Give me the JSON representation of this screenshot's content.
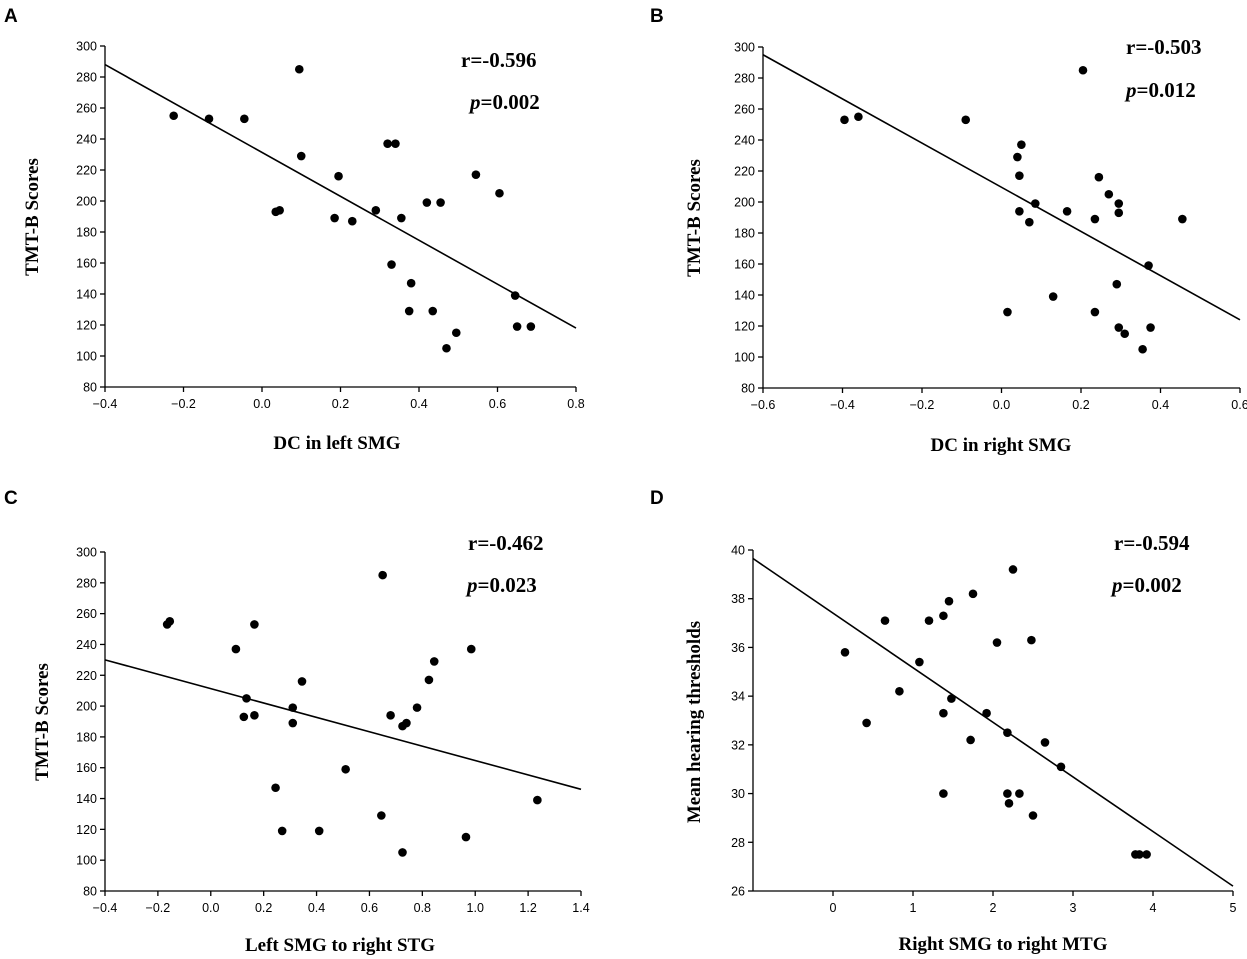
{
  "chart_data": [
    {
      "type": "scatter",
      "panel": "A",
      "xlabel": "DC in left SMG",
      "ylabel": "TMT-B Scores",
      "xlim": [
        -0.4,
        0.8
      ],
      "ylim": [
        80,
        300
      ],
      "xticks": [
        -0.4,
        -0.2,
        0.0,
        0.2,
        0.4,
        0.6,
        0.8
      ],
      "yticks": [
        80,
        100,
        120,
        140,
        160,
        180,
        200,
        220,
        240,
        260,
        280,
        300
      ],
      "xtick_labels": [
        "−0.4",
        "−0.2",
        "0.0",
        "0.2",
        "0.4",
        "0.6",
        "0.8"
      ],
      "ytick_labels": [
        "80",
        "100",
        "120",
        "140",
        "160",
        "180",
        "200",
        "220",
        "240",
        "260",
        "280",
        "300"
      ],
      "r_text": "r=-0.596",
      "p_label": "p",
      "p_value": "=0.002",
      "fit": {
        "x": [
          -0.4,
          0.8
        ],
        "y": [
          288,
          118
        ]
      },
      "points": [
        [
          -0.225,
          255
        ],
        [
          -0.135,
          253
        ],
        [
          -0.045,
          253
        ],
        [
          0.095,
          285
        ],
        [
          0.1,
          229
        ],
        [
          0.195,
          216
        ],
        [
          0.32,
          237
        ],
        [
          0.34,
          237
        ],
        [
          0.035,
          193
        ],
        [
          0.045,
          194
        ],
        [
          0.185,
          189
        ],
        [
          0.23,
          187
        ],
        [
          0.29,
          194
        ],
        [
          0.355,
          189
        ],
        [
          0.42,
          199
        ],
        [
          0.455,
          199
        ],
        [
          0.545,
          217
        ],
        [
          0.605,
          205
        ],
        [
          0.33,
          159
        ],
        [
          0.38,
          147
        ],
        [
          0.375,
          129
        ],
        [
          0.435,
          129
        ],
        [
          0.47,
          105
        ],
        [
          0.495,
          115
        ],
        [
          0.645,
          139
        ],
        [
          0.65,
          119
        ],
        [
          0.685,
          119
        ]
      ]
    },
    {
      "type": "scatter",
      "panel": "B",
      "xlabel": "DC in right SMG",
      "ylabel": "TMT-B Scores",
      "xlim": [
        -0.6,
        0.6
      ],
      "ylim": [
        80,
        300
      ],
      "xticks": [
        -0.6,
        -0.4,
        -0.2,
        0.0,
        0.2,
        0.4,
        0.6
      ],
      "yticks": [
        80,
        100,
        120,
        140,
        160,
        180,
        200,
        220,
        240,
        260,
        280,
        300
      ],
      "xtick_labels": [
        "−0.6",
        "−0.4",
        "−0.2",
        "0.0",
        "0.2",
        "0.4",
        "0.6"
      ],
      "ytick_labels": [
        "80",
        "100",
        "120",
        "140",
        "160",
        "180",
        "200",
        "220",
        "240",
        "260",
        "280",
        "300"
      ],
      "r_text": "r=-0.503",
      "p_label": "p",
      "p_value": "=0.012",
      "fit": {
        "x": [
          -0.6,
          0.6
        ],
        "y": [
          295,
          124
        ]
      },
      "points": [
        [
          -0.395,
          253
        ],
        [
          -0.36,
          255
        ],
        [
          -0.09,
          253
        ],
        [
          0.205,
          285
        ],
        [
          0.05,
          237
        ],
        [
          0.04,
          229
        ],
        [
          0.045,
          217
        ],
        [
          0.085,
          199
        ],
        [
          0.045,
          194
        ],
        [
          0.07,
          187
        ],
        [
          0.165,
          194
        ],
        [
          0.235,
          189
        ],
        [
          0.245,
          216
        ],
        [
          0.27,
          205
        ],
        [
          0.295,
          199
        ],
        [
          0.295,
          193
        ],
        [
          0.455,
          189
        ],
        [
          0.015,
          129
        ],
        [
          0.13,
          139
        ],
        [
          0.235,
          129
        ],
        [
          0.29,
          147
        ],
        [
          0.295,
          119
        ],
        [
          0.31,
          115
        ],
        [
          0.355,
          105
        ],
        [
          0.375,
          119
        ],
        [
          0.37,
          159
        ]
      ]
    },
    {
      "type": "scatter",
      "panel": "C",
      "xlabel": "Left SMG to right STG",
      "ylabel": "TMT-B Scores",
      "xlim": [
        -0.4,
        1.4
      ],
      "ylim": [
        80,
        300
      ],
      "xticks": [
        -0.4,
        -0.2,
        0.0,
        0.2,
        0.4,
        0.6,
        0.8,
        1.0,
        1.2,
        1.4
      ],
      "yticks": [
        80,
        100,
        120,
        140,
        160,
        180,
        200,
        220,
        240,
        260,
        280,
        300
      ],
      "xtick_labels": [
        "−0.4",
        "−0.2",
        "0.0",
        "0.2",
        "0.4",
        "0.6",
        "0.8",
        "1.0",
        "1.2",
        "1.4"
      ],
      "ytick_labels": [
        "80",
        "100",
        "120",
        "140",
        "160",
        "180",
        "200",
        "220",
        "240",
        "260",
        "280",
        "300"
      ],
      "r_text": "r=-0.462",
      "p_label": "p",
      "p_value": "=0.023",
      "fit": {
        "x": [
          -0.4,
          1.4
        ],
        "y": [
          230,
          146
        ]
      },
      "points": [
        [
          -0.165,
          253
        ],
        [
          -0.155,
          255
        ],
        [
          0.095,
          237
        ],
        [
          0.165,
          253
        ],
        [
          0.135,
          205
        ],
        [
          0.125,
          193
        ],
        [
          0.165,
          194
        ],
        [
          0.31,
          199
        ],
        [
          0.31,
          189
        ],
        [
          0.345,
          216
        ],
        [
          0.65,
          285
        ],
        [
          0.68,
          194
        ],
        [
          0.725,
          187
        ],
        [
          0.74,
          189
        ],
        [
          0.78,
          199
        ],
        [
          0.825,
          217
        ],
        [
          0.845,
          229
        ],
        [
          0.985,
          237
        ],
        [
          0.245,
          147
        ],
        [
          0.27,
          119
        ],
        [
          0.41,
          119
        ],
        [
          0.51,
          159
        ],
        [
          0.645,
          129
        ],
        [
          0.725,
          105
        ],
        [
          0.965,
          115
        ],
        [
          1.235,
          139
        ]
      ]
    },
    {
      "type": "scatter",
      "panel": "D",
      "xlabel": "Right SMG to right MTG",
      "ylabel": "Mean hearing thresholds",
      "xlim": [
        -1,
        5
      ],
      "ylim": [
        26,
        40
      ],
      "xticks": [
        0,
        1,
        2,
        3,
        4,
        5
      ],
      "yticks": [
        26,
        28,
        30,
        32,
        34,
        36,
        38,
        40
      ],
      "xtick_labels": [
        "0",
        "1",
        "2",
        "3",
        "4",
        "5"
      ],
      "ytick_labels": [
        "26",
        "28",
        "30",
        "32",
        "34",
        "36",
        "38",
        "40"
      ],
      "r_text": "r=-0.594",
      "p_label": "p",
      "p_value": "=0.002",
      "fit": {
        "x": [
          -1,
          5
        ],
        "y": [
          39.65,
          26.2
        ]
      },
      "points": [
        [
          0.15,
          35.8
        ],
        [
          0.65,
          37.1
        ],
        [
          0.42,
          32.9
        ],
        [
          0.83,
          34.2
        ],
        [
          1.08,
          35.4
        ],
        [
          1.2,
          37.1
        ],
        [
          1.38,
          37.3
        ],
        [
          1.45,
          37.9
        ],
        [
          1.48,
          33.9
        ],
        [
          1.38,
          33.3
        ],
        [
          1.38,
          30.0
        ],
        [
          1.72,
          32.2
        ],
        [
          1.75,
          38.2
        ],
        [
          1.92,
          33.3
        ],
        [
          2.05,
          36.2
        ],
        [
          2.18,
          32.5
        ],
        [
          2.18,
          30.0
        ],
        [
          2.2,
          29.6
        ],
        [
          2.25,
          39.2
        ],
        [
          2.33,
          30.0
        ],
        [
          2.48,
          36.3
        ],
        [
          2.5,
          29.1
        ],
        [
          2.65,
          32.1
        ],
        [
          2.85,
          31.1
        ],
        [
          3.78,
          27.5
        ],
        [
          3.83,
          27.5
        ],
        [
          3.92,
          27.5
        ]
      ]
    }
  ]
}
